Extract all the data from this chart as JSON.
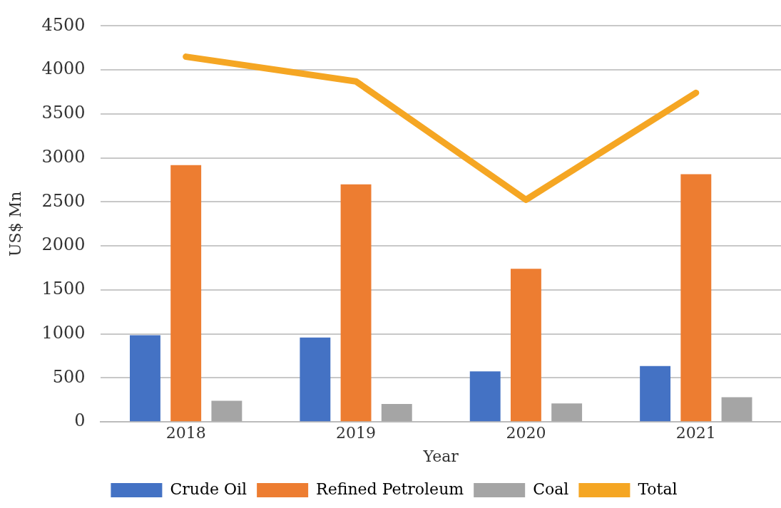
{
  "chart_data": {
    "type": "bar",
    "xlabel": "Year",
    "ylabel": "US$ Mn",
    "categories": [
      "2018",
      "2019",
      "2020",
      "2021"
    ],
    "series": [
      {
        "name": "Crude Oil",
        "color": "#4472c4",
        "values": [
          985,
          960,
          575,
          635
        ]
      },
      {
        "name": "Refined Petroleum",
        "color": "#ed7d31",
        "values": [
          2918,
          2700,
          1740,
          2815
        ]
      },
      {
        "name": "Coal",
        "color": "#a5a5a5",
        "values": [
          240,
          205,
          210,
          280
        ]
      },
      {
        "name": "Total",
        "type": "line",
        "color": "#f5a623",
        "values": [
          4150,
          3870,
          2525,
          3740
        ]
      }
    ],
    "ylim": [
      0,
      4500
    ],
    "yticks": [
      0,
      500,
      1000,
      1500,
      2000,
      2500,
      3000,
      3500,
      4000,
      4500
    ],
    "grid": "y",
    "legend": "bottom",
    "marker": "none",
    "line_style": "solid"
  }
}
